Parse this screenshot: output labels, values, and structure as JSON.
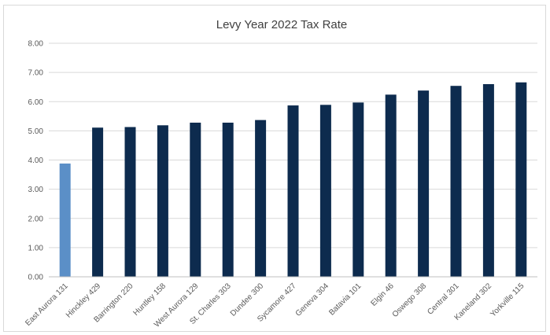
{
  "chart_data": {
    "type": "bar",
    "title": "Levy Year 2022 Tax Rate",
    "xlabel": "",
    "ylabel": "",
    "ylim": [
      0,
      8
    ],
    "yticks": [
      "0.00",
      "1.00",
      "2.00",
      "3.00",
      "4.00",
      "5.00",
      "6.00",
      "7.00",
      "8.00"
    ],
    "grid": true,
    "legend": "none",
    "categories": [
      "East Aurora 131",
      "Hinckley 429",
      "Barrington 220",
      "Huntley 158",
      "West Aurora 129",
      "St. Charles 303",
      "Dundee 300",
      "Sycamore 427",
      "Geneva 304",
      "Batavia 101",
      "Elgin 46",
      "Oswego 308",
      "Central 301",
      "Kaneland 302",
      "Yorkville 115"
    ],
    "values": [
      3.88,
      5.11,
      5.13,
      5.19,
      5.28,
      5.28,
      5.37,
      5.87,
      5.89,
      5.97,
      6.24,
      6.38,
      6.54,
      6.6,
      6.66
    ],
    "colors": {
      "highlight": "#5b8fc7",
      "default": "#0d2b4e"
    },
    "highlight_index": 0
  }
}
